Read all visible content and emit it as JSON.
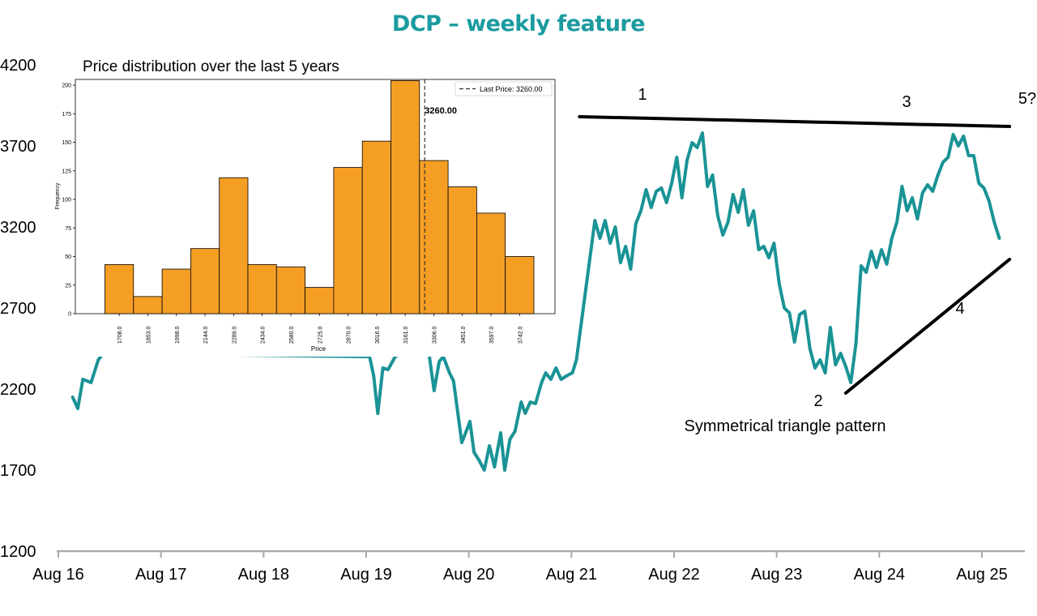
{
  "title": "DCP – weekly feature",
  "colors": {
    "title": "#1a9ba0",
    "line": "#1a9396",
    "bar": "#f59e24",
    "trendline": "#000000"
  },
  "chart_data": [
    {
      "type": "line",
      "name": "main-price-chart",
      "title": "",
      "xlabel": "",
      "ylabel": "",
      "y_ticks": [
        "4200",
        "3700",
        "3200",
        "2700",
        "2200",
        "1700",
        "1200"
      ],
      "ylim": [
        1200,
        4200
      ],
      "x_ticks": [
        "Aug 16",
        "Aug 17",
        "Aug 18",
        "Aug 19",
        "Aug 20",
        "Aug 21",
        "Aug 22",
        "Aug 23",
        "Aug 24",
        "Aug 25"
      ],
      "xlim": [
        2016.6,
        2026.0
      ],
      "grid": false,
      "series": [
        {
          "values": [
            [
              2016.9,
              2150
            ],
            [
              2016.95,
              2080
            ],
            [
              2017.0,
              2260
            ],
            [
              2017.08,
              2240
            ],
            [
              2017.15,
              2380
            ],
            [
              2017.2,
              2420
            ],
            [
              2019.8,
              2400
            ],
            [
              2019.84,
              2280
            ],
            [
              2019.88,
              2050
            ],
            [
              2019.93,
              2330
            ],
            [
              2019.98,
              2320
            ],
            [
              2020.05,
              2400
            ],
            [
              2020.1,
              2420
            ],
            [
              2020.38,
              2420
            ],
            [
              2020.43,
              2190
            ],
            [
              2020.48,
              2370
            ],
            [
              2020.52,
              2400
            ],
            [
              2020.58,
              2300
            ],
            [
              2020.62,
              2250
            ],
            [
              2020.7,
              1870
            ],
            [
              2020.75,
              1950
            ],
            [
              2020.78,
              2000
            ],
            [
              2020.82,
              1810
            ],
            [
              2020.87,
              1760
            ],
            [
              2020.92,
              1700
            ],
            [
              2020.97,
              1850
            ],
            [
              2021.02,
              1720
            ],
            [
              2021.08,
              1930
            ],
            [
              2021.12,
              1700
            ],
            [
              2021.17,
              1890
            ],
            [
              2021.22,
              1940
            ],
            [
              2021.28,
              2120
            ],
            [
              2021.32,
              2050
            ],
            [
              2021.37,
              2120
            ],
            [
              2021.42,
              2110
            ],
            [
              2021.48,
              2240
            ],
            [
              2021.52,
              2300
            ],
            [
              2021.57,
              2260
            ],
            [
              2021.62,
              2330
            ],
            [
              2021.67,
              2260
            ],
            [
              2021.72,
              2280
            ],
            [
              2021.78,
              2300
            ],
            [
              2021.82,
              2380
            ],
            [
              2022.0,
              3240
            ],
            [
              2022.05,
              3130
            ],
            [
              2022.1,
              3240
            ],
            [
              2022.15,
              3100
            ],
            [
              2022.2,
              3200
            ],
            [
              2022.25,
              2980
            ],
            [
              2022.3,
              3080
            ],
            [
              2022.35,
              2940
            ],
            [
              2022.4,
              3220
            ],
            [
              2022.45,
              3300
            ],
            [
              2022.5,
              3430
            ],
            [
              2022.55,
              3320
            ],
            [
              2022.6,
              3420
            ],
            [
              2022.65,
              3440
            ],
            [
              2022.7,
              3350
            ],
            [
              2022.75,
              3470
            ],
            [
              2022.8,
              3630
            ],
            [
              2022.85,
              3380
            ],
            [
              2022.9,
              3610
            ],
            [
              2022.95,
              3720
            ],
            [
              2023.0,
              3690
            ],
            [
              2023.05,
              3780
            ],
            [
              2023.1,
              3450
            ],
            [
              2023.15,
              3520
            ],
            [
              2023.2,
              3270
            ],
            [
              2023.25,
              3150
            ],
            [
              2023.3,
              3230
            ],
            [
              2023.35,
              3400
            ],
            [
              2023.4,
              3290
            ],
            [
              2023.45,
              3430
            ],
            [
              2023.5,
              3210
            ],
            [
              2023.55,
              3300
            ],
            [
              2023.6,
              3060
            ],
            [
              2023.65,
              3080
            ],
            [
              2023.7,
              3010
            ],
            [
              2023.75,
              3100
            ],
            [
              2023.8,
              2850
            ],
            [
              2023.85,
              2700
            ],
            [
              2023.9,
              2670
            ],
            [
              2023.95,
              2490
            ],
            [
              2024.0,
              2660
            ],
            [
              2024.05,
              2680
            ],
            [
              2024.1,
              2450
            ],
            [
              2024.15,
              2330
            ],
            [
              2024.2,
              2380
            ],
            [
              2024.25,
              2300
            ],
            [
              2024.3,
              2580
            ],
            [
              2024.35,
              2350
            ],
            [
              2024.4,
              2420
            ],
            [
              2024.45,
              2340
            ],
            [
              2024.5,
              2240
            ],
            [
              2024.55,
              2480
            ],
            [
              2024.6,
              2960
            ],
            [
              2024.65,
              2920
            ],
            [
              2024.7,
              3050
            ],
            [
              2024.75,
              2950
            ],
            [
              2024.8,
              3060
            ],
            [
              2024.85,
              2970
            ],
            [
              2024.9,
              3130
            ],
            [
              2024.95,
              3230
            ],
            [
              2025.0,
              3450
            ],
            [
              2025.05,
              3300
            ],
            [
              2025.1,
              3380
            ],
            [
              2025.15,
              3250
            ],
            [
              2025.2,
              3410
            ],
            [
              2025.25,
              3460
            ],
            [
              2025.3,
              3420
            ],
            [
              2025.35,
              3520
            ],
            [
              2025.4,
              3600
            ],
            [
              2025.45,
              3630
            ],
            [
              2025.5,
              3770
            ],
            [
              2025.55,
              3700
            ],
            [
              2025.6,
              3760
            ],
            [
              2025.65,
              3640
            ],
            [
              2025.7,
              3640
            ],
            [
              2025.75,
              3470
            ],
            [
              2025.8,
              3440
            ],
            [
              2025.85,
              3360
            ],
            [
              2025.9,
              3230
            ],
            [
              2025.95,
              3130
            ]
          ]
        }
      ],
      "annotations": [
        {
          "label": "1"
        },
        {
          "label": "2"
        },
        {
          "label": "3"
        },
        {
          "label": "4"
        },
        {
          "label": "5?"
        },
        {
          "label": "Symmetrical triangle pattern"
        }
      ],
      "trendlines": [
        {
          "from": [
            2021.85,
            3880
          ],
          "to": [
            2026.05,
            3820
          ]
        },
        {
          "from": [
            2024.45,
            2175
          ],
          "to": [
            2026.05,
            3000
          ]
        }
      ]
    },
    {
      "type": "bar",
      "name": "histogram-inset",
      "title": "Price distribution over the last 5 years",
      "xlabel": "Price",
      "ylabel": "Frequency",
      "categories": [
        "1708.0",
        "1853.0",
        "1998.0",
        "2144.0",
        "2289.0",
        "2434.0",
        "2580.0",
        "2725.0",
        "2870.0",
        "3016.0",
        "3161.0",
        "3306.0",
        "3451.0",
        "3597.0",
        "3742.0"
      ],
      "values": [
        43,
        15,
        39,
        57,
        119,
        43,
        41,
        23,
        128,
        151,
        204,
        134,
        111,
        88,
        50
      ],
      "y_ticks": [
        "0",
        "25",
        "50",
        "75",
        "100",
        "125",
        "150",
        "175",
        "200"
      ],
      "ylim": [
        0,
        205
      ],
      "last_price": 3260.0,
      "last_price_label": "3260.00",
      "legend_label": "Last Price: 3260.00",
      "legend": "top-right",
      "grid": false
    }
  ]
}
